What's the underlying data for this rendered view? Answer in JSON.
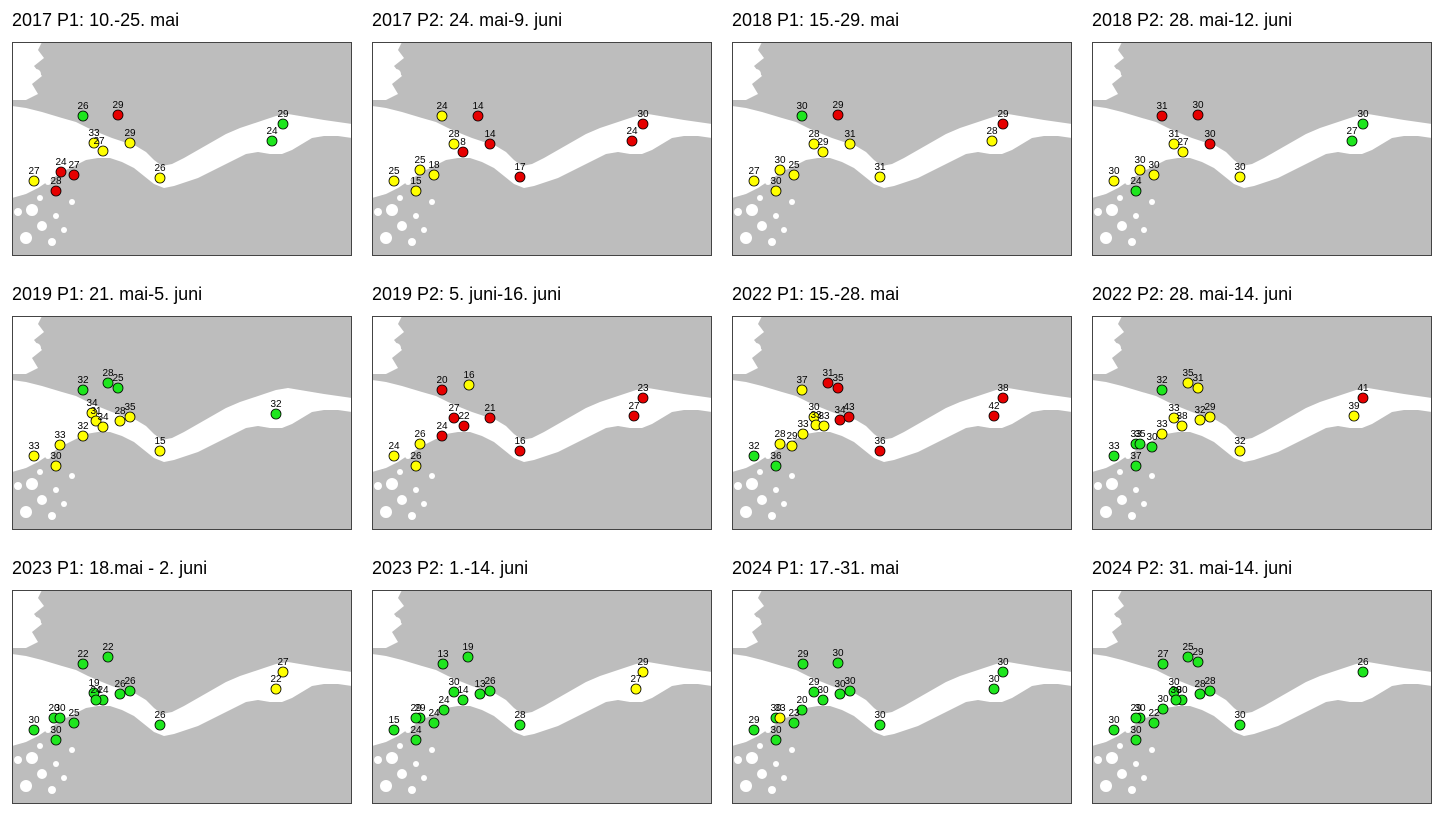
{
  "colors": {
    "land": "#bdbdbd",
    "water": "#ffffff",
    "frame": "#444444",
    "green": "#1ee61e",
    "yellow": "#ffff00",
    "red": "#e60000",
    "marker_stroke": "#000000"
  },
  "panels": [
    {
      "title": "2017 P1: 10.-25. mai",
      "sites": [
        {
          "label": "26",
          "status": "green"
        },
        {
          "label": "29",
          "status": "red"
        },
        {
          "label": "33",
          "status": "yellow"
        },
        {
          "label": "27",
          "status": "yellow"
        },
        {
          "label": "29",
          "status": "yellow"
        },
        {
          "label": "24",
          "status": "red"
        },
        {
          "label": "27",
          "status": "red"
        },
        {
          "label": "27",
          "status": "yellow"
        },
        {
          "label": "28",
          "status": "red"
        },
        {
          "label": "26",
          "status": "yellow"
        },
        {
          "label": "29",
          "status": "green"
        },
        {
          "label": "24",
          "status": "green"
        }
      ]
    },
    {
      "title": "2017 P2: 24. mai-9. juni",
      "sites": [
        {
          "label": "24",
          "status": "yellow"
        },
        {
          "label": "14",
          "status": "red"
        },
        {
          "label": "28",
          "status": "yellow"
        },
        {
          "label": "8",
          "status": "red"
        },
        {
          "label": "14",
          "status": "red"
        },
        {
          "label": "25",
          "status": "yellow"
        },
        {
          "label": "18",
          "status": "yellow"
        },
        {
          "label": "25",
          "status": "yellow"
        },
        {
          "label": "15",
          "status": "yellow"
        },
        {
          "label": "17",
          "status": "red"
        },
        {
          "label": "30",
          "status": "red"
        },
        {
          "label": "24",
          "status": "red"
        }
      ]
    },
    {
      "title": "2018 P1: 15.-29. mai",
      "sites": [
        {
          "label": "30",
          "status": "green"
        },
        {
          "label": "29",
          "status": "red"
        },
        {
          "label": "28",
          "status": "yellow"
        },
        {
          "label": "29",
          "status": "yellow"
        },
        {
          "label": "31",
          "status": "yellow"
        },
        {
          "label": "30",
          "status": "yellow"
        },
        {
          "label": "25",
          "status": "yellow"
        },
        {
          "label": "27",
          "status": "yellow"
        },
        {
          "label": "30",
          "status": "yellow"
        },
        {
          "label": "31",
          "status": "yellow"
        },
        {
          "label": "29",
          "status": "red"
        },
        {
          "label": "28",
          "status": "yellow"
        }
      ]
    },
    {
      "title": "2018 P2: 28. mai-12. juni",
      "sites": [
        {
          "label": "31",
          "status": "red"
        },
        {
          "label": "30",
          "status": "red"
        },
        {
          "label": "31",
          "status": "yellow"
        },
        {
          "label": "27",
          "status": "yellow"
        },
        {
          "label": "30",
          "status": "red"
        },
        {
          "label": "30",
          "status": "yellow"
        },
        {
          "label": "30",
          "status": "yellow"
        },
        {
          "label": "30",
          "status": "yellow"
        },
        {
          "label": "24",
          "status": "green"
        },
        {
          "label": "30",
          "status": "yellow"
        },
        {
          "label": "30",
          "status": "green"
        },
        {
          "label": "27",
          "status": "green"
        }
      ]
    },
    {
      "title": "2019 P1: 21. mai-5. juni",
      "sites": [
        {
          "label": "32",
          "status": "green"
        },
        {
          "label": "28",
          "status": "green"
        },
        {
          "label": "25",
          "status": "green"
        },
        {
          "label": "34",
          "status": "yellow"
        },
        {
          "label": "31",
          "status": "yellow"
        },
        {
          "label": "34",
          "status": "yellow"
        },
        {
          "label": "28",
          "status": "yellow"
        },
        {
          "label": "35",
          "status": "yellow"
        },
        {
          "label": "32",
          "status": "yellow"
        },
        {
          "label": "33",
          "status": "yellow"
        },
        {
          "label": "33",
          "status": "yellow"
        },
        {
          "label": "30",
          "status": "yellow"
        },
        {
          "label": "15",
          "status": "yellow"
        },
        {
          "label": "32",
          "status": "green"
        }
      ]
    },
    {
      "title": "2019 P2: 5. juni-16. juni",
      "sites": [
        {
          "label": "20",
          "status": "red"
        },
        {
          "label": "16",
          "status": "yellow"
        },
        {
          "label": "27",
          "status": "red"
        },
        {
          "label": "22",
          "status": "red"
        },
        {
          "label": "24",
          "status": "red"
        },
        {
          "label": "21",
          "status": "red"
        },
        {
          "label": "26",
          "status": "yellow"
        },
        {
          "label": "24",
          "status": "yellow"
        },
        {
          "label": "26",
          "status": "yellow"
        },
        {
          "label": "16",
          "status": "red"
        },
        {
          "label": "23",
          "status": "red"
        },
        {
          "label": "27",
          "status": "red"
        }
      ]
    },
    {
      "title": "2022 P1: 15.-28. mai",
      "sites": [
        {
          "label": "37",
          "status": "yellow"
        },
        {
          "label": "31",
          "status": "red"
        },
        {
          "label": "35",
          "status": "red"
        },
        {
          "label": "30",
          "status": "yellow"
        },
        {
          "label": "34",
          "status": "red"
        },
        {
          "label": "43",
          "status": "red"
        },
        {
          "label": "33",
          "status": "yellow"
        },
        {
          "label": "33",
          "status": "yellow"
        },
        {
          "label": "33",
          "status": "yellow"
        },
        {
          "label": "29",
          "status": "yellow"
        },
        {
          "label": "28",
          "status": "yellow"
        },
        {
          "label": "32",
          "status": "green"
        },
        {
          "label": "36",
          "status": "green"
        },
        {
          "label": "36",
          "status": "red"
        },
        {
          "label": "38",
          "status": "red"
        },
        {
          "label": "42",
          "status": "red"
        }
      ]
    },
    {
      "title": "2022 P2: 28. mai-14. juni",
      "sites": [
        {
          "label": "32",
          "status": "green"
        },
        {
          "label": "35",
          "status": "yellow"
        },
        {
          "label": "31",
          "status": "yellow"
        },
        {
          "label": "33",
          "status": "yellow"
        },
        {
          "label": "38",
          "status": "yellow"
        },
        {
          "label": "32",
          "status": "yellow"
        },
        {
          "label": "29",
          "status": "yellow"
        },
        {
          "label": "33",
          "status": "yellow"
        },
        {
          "label": "33",
          "status": "green"
        },
        {
          "label": "35",
          "status": "green"
        },
        {
          "label": "30",
          "status": "green"
        },
        {
          "label": "33",
          "status": "green"
        },
        {
          "label": "37",
          "status": "green"
        },
        {
          "label": "32",
          "status": "yellow"
        },
        {
          "label": "41",
          "status": "red"
        },
        {
          "label": "39",
          "status": "yellow"
        }
      ]
    },
    {
      "title": "2023 P1: 18.mai - 2. juni",
      "sites": [
        {
          "label": "22",
          "status": "green"
        },
        {
          "label": "22",
          "status": "green"
        },
        {
          "label": "19",
          "status": "green"
        },
        {
          "label": "24",
          "status": "green"
        },
        {
          "label": "24",
          "status": "green"
        },
        {
          "label": "26",
          "status": "green"
        },
        {
          "label": "26",
          "status": "green"
        },
        {
          "label": "20",
          "status": "green"
        },
        {
          "label": "30",
          "status": "green"
        },
        {
          "label": "25",
          "status": "green"
        },
        {
          "label": "30",
          "status": "green"
        },
        {
          "label": "30",
          "status": "green"
        },
        {
          "label": "26",
          "status": "green"
        },
        {
          "label": "27",
          "status": "yellow"
        },
        {
          "label": "22",
          "status": "yellow"
        }
      ]
    },
    {
      "title": "2023 P2: 1.-14. juni",
      "sites": [
        {
          "label": "13",
          "status": "green"
        },
        {
          "label": "19",
          "status": "green"
        },
        {
          "label": "30",
          "status": "green"
        },
        {
          "label": "14",
          "status": "green"
        },
        {
          "label": "13",
          "status": "green"
        },
        {
          "label": "26",
          "status": "green"
        },
        {
          "label": "24",
          "status": "green"
        },
        {
          "label": "29",
          "status": "green"
        },
        {
          "label": "29",
          "status": "green"
        },
        {
          "label": "24",
          "status": "green"
        },
        {
          "label": "15",
          "status": "green"
        },
        {
          "label": "24",
          "status": "green"
        },
        {
          "label": "28",
          "status": "green"
        },
        {
          "label": "29",
          "status": "yellow"
        },
        {
          "label": "27",
          "status": "yellow"
        }
      ]
    },
    {
      "title": "2024 P1: 17.-31. mai",
      "sites": [
        {
          "label": "29",
          "status": "green"
        },
        {
          "label": "30",
          "status": "green"
        },
        {
          "label": "29",
          "status": "green"
        },
        {
          "label": "30",
          "status": "green"
        },
        {
          "label": "30",
          "status": "green"
        },
        {
          "label": "30",
          "status": "green"
        },
        {
          "label": "20",
          "status": "green"
        },
        {
          "label": "23",
          "status": "green"
        },
        {
          "label": "30",
          "status": "green"
        },
        {
          "label": "33",
          "status": "yellow"
        },
        {
          "label": "29",
          "status": "green"
        },
        {
          "label": "30",
          "status": "green"
        },
        {
          "label": "30",
          "status": "green"
        },
        {
          "label": "30",
          "status": "green"
        },
        {
          "label": "30",
          "status": "green"
        }
      ]
    },
    {
      "title": "2024 P2: 31. mai-14. juni",
      "sites": [
        {
          "label": "27",
          "status": "green"
        },
        {
          "label": "25",
          "status": "green"
        },
        {
          "label": "29",
          "status": "green"
        },
        {
          "label": "30",
          "status": "green"
        },
        {
          "label": "28",
          "status": "green"
        },
        {
          "label": "28",
          "status": "green"
        },
        {
          "label": "30",
          "status": "green"
        },
        {
          "label": "30",
          "status": "green"
        },
        {
          "label": "22",
          "status": "green"
        },
        {
          "label": "30",
          "status": "green"
        },
        {
          "label": "29",
          "status": "green"
        },
        {
          "label": "30",
          "status": "green"
        },
        {
          "label": "30",
          "status": "green"
        },
        {
          "label": "30",
          "status": "green"
        },
        {
          "label": "30",
          "status": "green"
        },
        {
          "label": "26",
          "status": "green"
        }
      ]
    }
  ]
}
